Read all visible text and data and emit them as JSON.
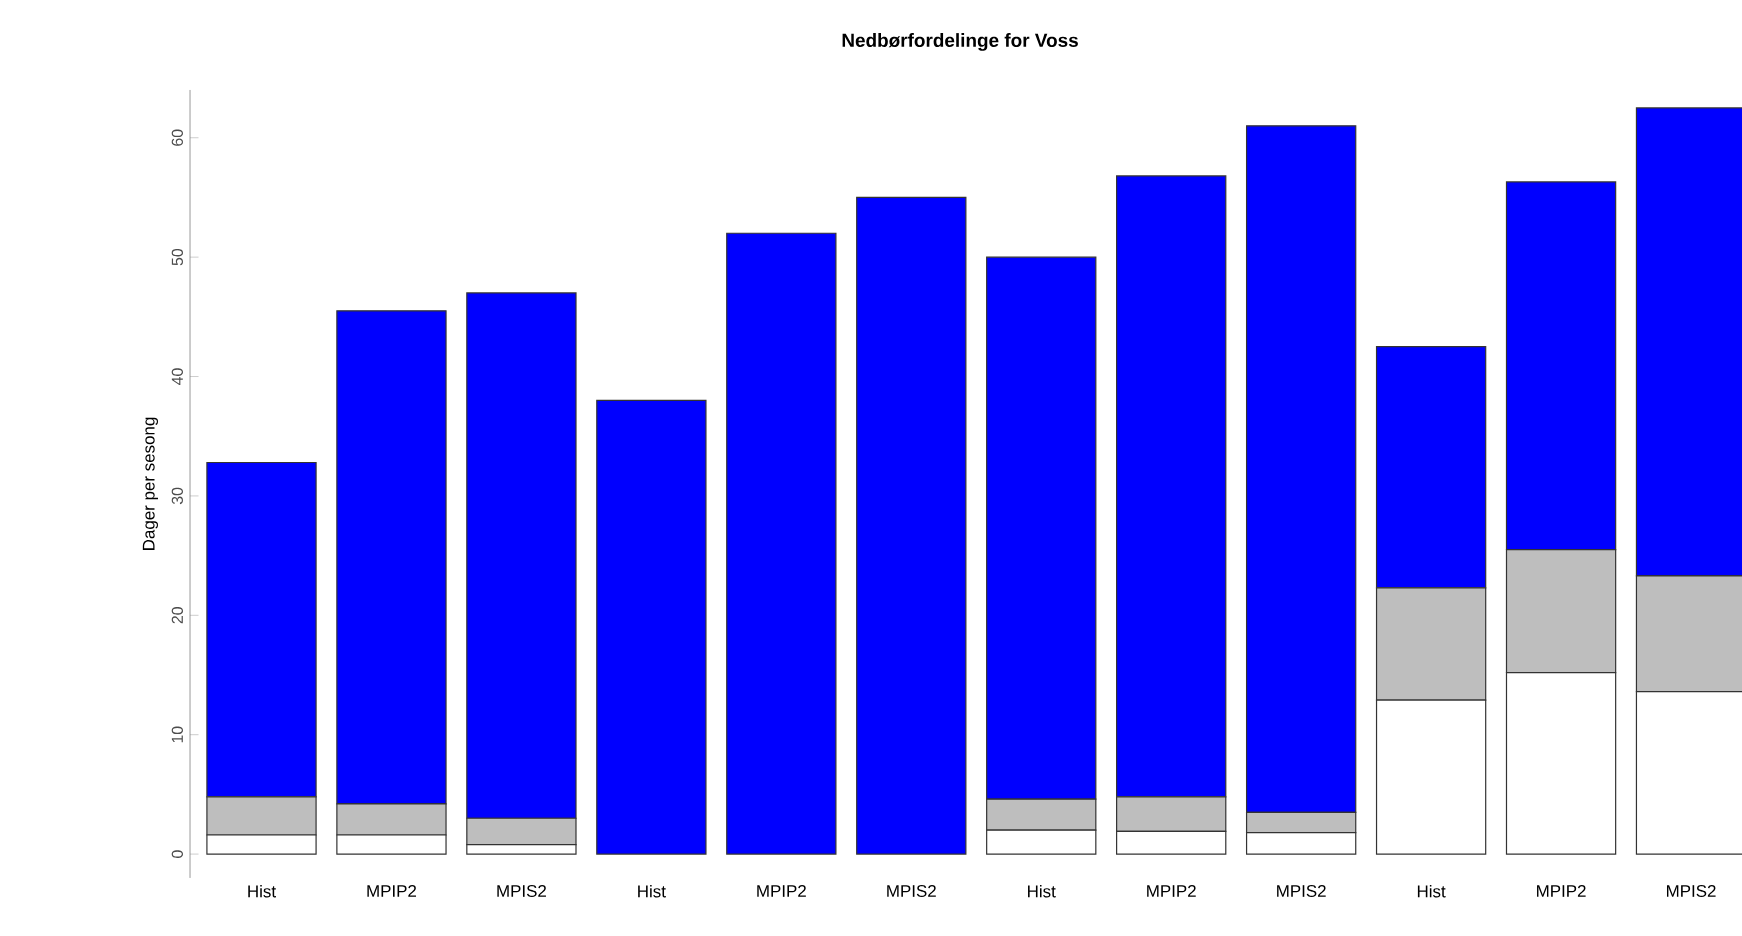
{
  "chart_data": {
    "type": "bar",
    "title": "Nedbørfordelinge for Voss",
    "ylabel": "Dager per sesong",
    "categories": [
      "Hist",
      "MPIP2",
      "MPIS2",
      "Hist",
      "MPIP2",
      "MPIS2",
      "Hist",
      "MPIP2",
      "MPIS2",
      "Hist",
      "MPIP2",
      "MPIS2"
    ],
    "stacked": true,
    "series": [
      {
        "color": "#ffffff",
        "values": [
          1.6,
          1.6,
          0.8,
          0,
          0,
          0,
          2.0,
          1.9,
          1.8,
          12.9,
          15.2,
          13.6
        ]
      },
      {
        "color": "#bebebe",
        "values": [
          3.2,
          2.6,
          2.2,
          0,
          0,
          0,
          2.6,
          2.9,
          1.7,
          9.4,
          10.3,
          9.7
        ]
      },
      {
        "color": "#0000ff",
        "values": [
          28.0,
          41.3,
          44.0,
          38,
          52,
          55,
          45.4,
          52.0,
          57.5,
          20.2,
          30.8,
          39.2
        ]
      }
    ],
    "ylim": [
      -2,
      64
    ],
    "yticks": [
      0,
      10,
      20,
      30,
      40,
      50,
      60
    ],
    "grid": false
  }
}
